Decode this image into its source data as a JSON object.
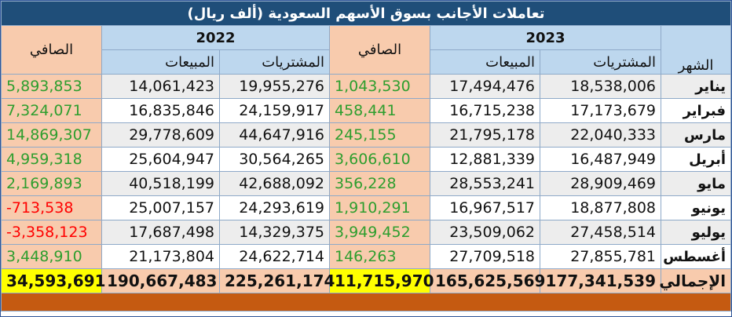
{
  "title": "تعاملات الأجانب بسوق الأسهم السعودية (ألف ريال)",
  "headers": {
    "year_2022": "2022",
    "year_2023": "2023",
    "net": "الصافي",
    "sales": "المبيعات",
    "purchases": "المشتريات",
    "month": "الشهر"
  },
  "rows": [
    {
      "month": "يناير",
      "p23": "18,538,006",
      "s23": "17,494,476",
      "n23": "1,043,530",
      "p22": "19,955,276",
      "s22": "14,061,423",
      "n22": "5,893,853"
    },
    {
      "month": "فبراير",
      "p23": "17,173,679",
      "s23": "16,715,238",
      "n23": "458,441",
      "p22": "24,159,917",
      "s22": "16,835,846",
      "n22": "7,324,071"
    },
    {
      "month": "مارس",
      "p23": "22,040,333",
      "s23": "21,795,178",
      "n23": "245,155",
      "p22": "44,647,916",
      "s22": "29,778,609",
      "n22": "14,869,307"
    },
    {
      "month": "أبريل",
      "p23": "16,487,949",
      "s23": "12,881,339",
      "n23": "3,606,610",
      "p22": "30,564,265",
      "s22": "25,604,947",
      "n22": "4,959,318"
    },
    {
      "month": "مايو",
      "p23": "28,909,469",
      "s23": "28,553,241",
      "n23": "356,228",
      "p22": "42,688,092",
      "s22": "40,518,199",
      "n22": "2,169,893"
    },
    {
      "month": "يونيو",
      "p23": "18,877,808",
      "s23": "16,967,517",
      "n23": "1,910,291",
      "p22": "24,293,619",
      "s22": "25,007,157",
      "n22": "-713,538"
    },
    {
      "month": "يوليو",
      "p23": "27,458,514",
      "s23": "23,509,062",
      "n23": "3,949,452",
      "p22": "14,329,375",
      "s22": "17,687,498",
      "n22": "-3,358,123"
    },
    {
      "month": "أغسطس",
      "p23": "27,855,781",
      "s23": "27,709,518",
      "n23": "146,263",
      "p22": "24,622,714",
      "s22": "21,173,804",
      "n22": "3,448,910"
    }
  ],
  "total": {
    "month": "الإجمالي",
    "p23": "177,341,539",
    "s23": "165,625,569",
    "n23": "11,715,970",
    "p22": "225,261,174",
    "s22": "190,667,483",
    "n22": "34,593,691"
  },
  "colors": {
    "title_bg": "#1f4e79",
    "header_bg": "#bdd7ee",
    "net_bg": "#f8cbad",
    "highlight": "#ffff00",
    "positive": "#2e9e2e",
    "negative": "#ff0000",
    "footer_bar": "#c55a11"
  }
}
